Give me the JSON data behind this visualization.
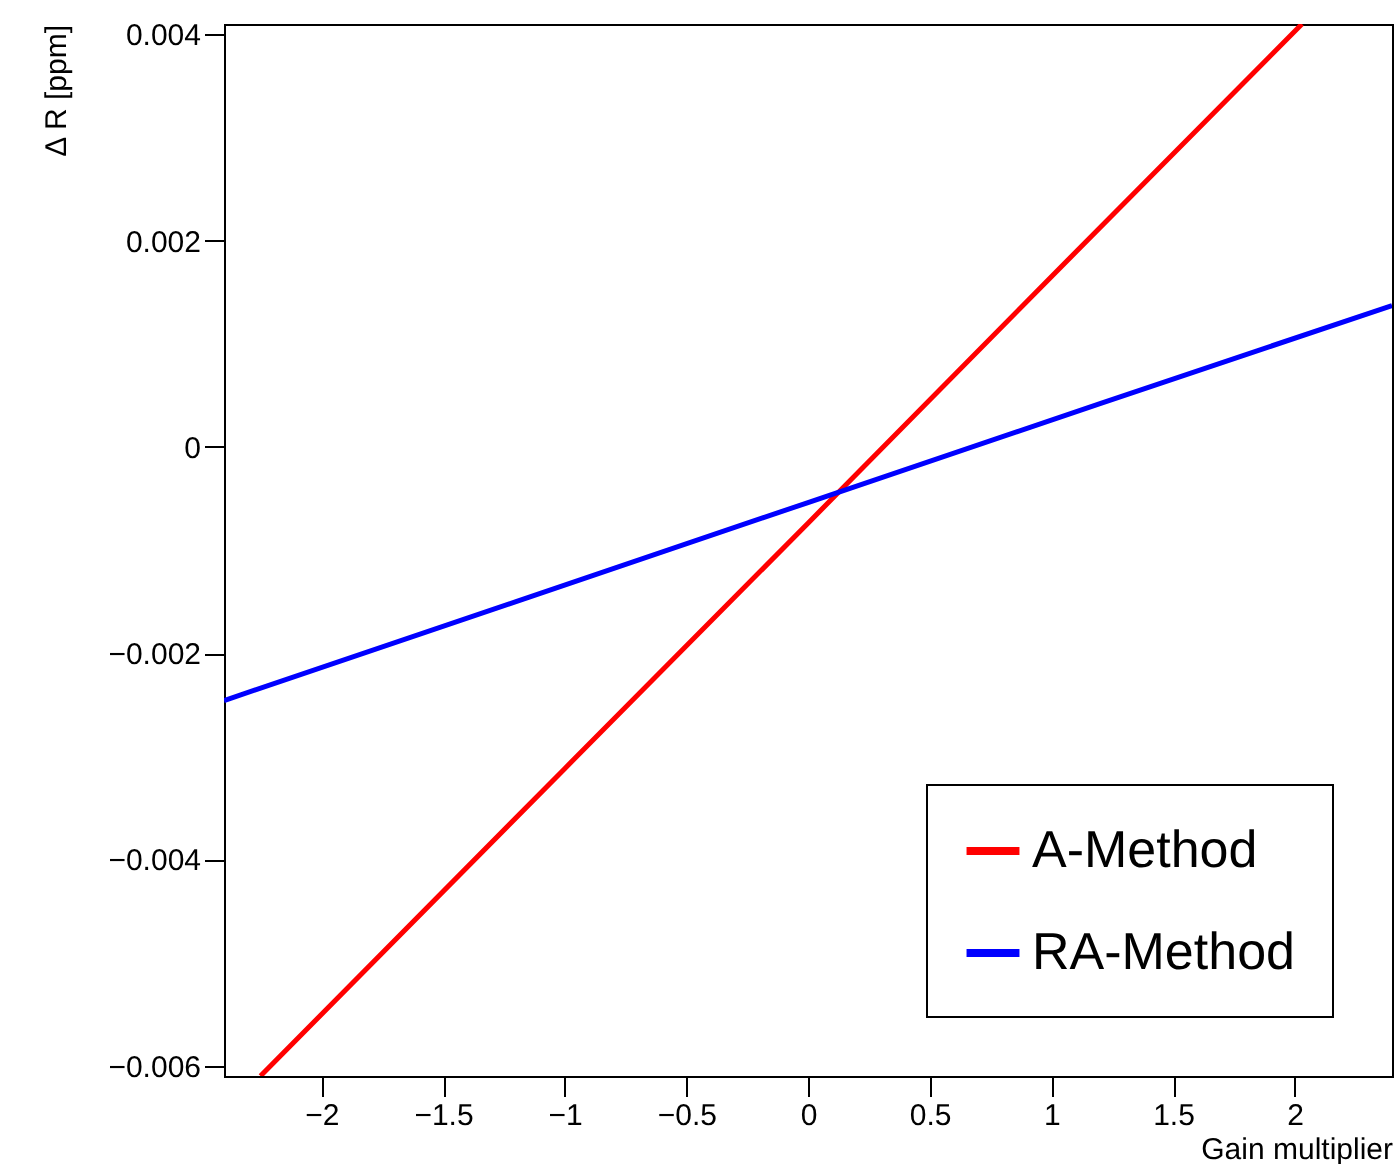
{
  "chart_data": {
    "type": "line",
    "xlabel": "Gain multiplier",
    "ylabel": "Δ R [ppm]",
    "xlim": [
      -2.4,
      2.4
    ],
    "xticks": [
      -2,
      -1.5,
      -1,
      -0.5,
      0,
      0.5,
      1,
      1.5,
      2
    ],
    "ylim": [
      -0.0061,
      0.0041
    ],
    "yticks": [
      -0.006,
      -0.004,
      -0.002,
      0,
      0.002,
      0.004
    ],
    "grid": false,
    "legend": "bottom right",
    "marker": "none",
    "line_style": "solid",
    "series": [
      {
        "name": "A-Method",
        "color": "#ff0000",
        "x": [
          -2.25,
          -1,
          0,
          1,
          2.03
        ],
        "values": [
          -0.0061,
          -0.00312,
          -0.00074,
          0.00165,
          0.0041
        ]
      },
      {
        "name": "RA-Method",
        "color": "#0000ff",
        "x": [
          -2.4,
          -1.2,
          0,
          1.2,
          2.4
        ],
        "values": [
          -0.00246,
          -0.0015,
          -0.00054,
          0.00042,
          0.00137
        ]
      }
    ]
  }
}
